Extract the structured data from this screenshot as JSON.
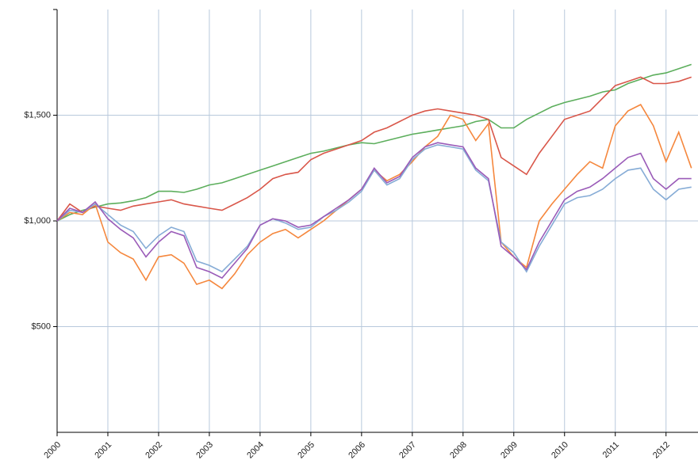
{
  "chart_data": {
    "type": "line",
    "x": [
      2000,
      2000.25,
      2000.5,
      2000.75,
      2001,
      2001.25,
      2001.5,
      2001.75,
      2002,
      2002.25,
      2002.5,
      2002.75,
      2003,
      2003.25,
      2003.5,
      2003.75,
      2004,
      2004.25,
      2004.5,
      2004.75,
      2005,
      2005.25,
      2005.5,
      2005.75,
      2006,
      2006.25,
      2006.5,
      2006.75,
      2007,
      2007.25,
      2007.5,
      2007.75,
      2008,
      2008.25,
      2008.5,
      2008.75,
      2009,
      2009.25,
      2009.5,
      2009.75,
      2010,
      2010.25,
      2010.5,
      2010.75,
      2011,
      2011.25,
      2011.5,
      2011.75,
      2012,
      2012.25,
      2012.5
    ],
    "series": [
      {
        "color": "#5cae5c",
        "values": [
          1000,
          1030,
          1050,
          1065,
          1080,
          1085,
          1095,
          1110,
          1140,
          1140,
          1135,
          1150,
          1170,
          1180,
          1200,
          1220,
          1240,
          1260,
          1280,
          1300,
          1320,
          1330,
          1345,
          1360,
          1370,
          1365,
          1380,
          1395,
          1410,
          1420,
          1430,
          1440,
          1450,
          1470,
          1480,
          1440,
          1440,
          1480,
          1510,
          1540,
          1560,
          1575,
          1590,
          1610,
          1620,
          1650,
          1670,
          1690,
          1700,
          1720,
          1740
        ]
      },
      {
        "color": "#d9574a",
        "values": [
          1000,
          1080,
          1040,
          1070,
          1060,
          1050,
          1070,
          1080,
          1090,
          1100,
          1080,
          1070,
          1060,
          1050,
          1080,
          1110,
          1150,
          1200,
          1220,
          1230,
          1290,
          1320,
          1340,
          1360,
          1380,
          1420,
          1440,
          1470,
          1500,
          1520,
          1530,
          1520,
          1510,
          1500,
          1480,
          1300,
          1260,
          1220,
          1320,
          1400,
          1480,
          1500,
          1520,
          1580,
          1640,
          1660,
          1680,
          1650,
          1650,
          1660,
          1680
        ]
      },
      {
        "color": "#f5873d",
        "values": [
          1000,
          1040,
          1030,
          1080,
          900,
          850,
          820,
          720,
          830,
          840,
          800,
          700,
          720,
          680,
          750,
          840,
          900,
          940,
          960,
          920,
          960,
          1000,
          1050,
          1100,
          1150,
          1240,
          1190,
          1220,
          1280,
          1350,
          1400,
          1500,
          1480,
          1380,
          1460,
          900,
          830,
          780,
          1000,
          1080,
          1150,
          1220,
          1280,
          1250,
          1450,
          1520,
          1550,
          1450,
          1280,
          1420,
          1250
        ]
      },
      {
        "color": "#86acd6",
        "values": [
          1000,
          1050,
          1040,
          1080,
          1030,
          980,
          950,
          870,
          930,
          970,
          950,
          810,
          790,
          760,
          820,
          880,
          980,
          1010,
          990,
          960,
          970,
          1020,
          1050,
          1090,
          1140,
          1240,
          1170,
          1200,
          1290,
          1340,
          1360,
          1350,
          1340,
          1240,
          1190,
          900,
          850,
          760,
          880,
          980,
          1080,
          1110,
          1120,
          1150,
          1200,
          1240,
          1250,
          1150,
          1100,
          1150,
          1160
        ]
      },
      {
        "color": "#9a5bb8",
        "values": [
          1000,
          1060,
          1040,
          1090,
          1010,
          960,
          920,
          830,
          900,
          950,
          930,
          780,
          760,
          730,
          800,
          870,
          980,
          1010,
          1000,
          970,
          980,
          1020,
          1060,
          1100,
          1150,
          1250,
          1180,
          1210,
          1300,
          1350,
          1370,
          1360,
          1350,
          1250,
          1200,
          880,
          830,
          770,
          900,
          1000,
          1100,
          1140,
          1160,
          1200,
          1250,
          1300,
          1320,
          1200,
          1150,
          1200,
          1200
        ]
      }
    ],
    "xlim": [
      2000,
      2012.63
    ],
    "xticks": [
      2000,
      2001,
      2002,
      2003,
      2004,
      2005,
      2006,
      2007,
      2008,
      2009,
      2010,
      2011,
      2012
    ],
    "ylim": [
      0,
      2000
    ],
    "yticks": [
      {
        "value": 500,
        "label": "$500"
      },
      {
        "value": 1000,
        "label": "$1,000"
      },
      {
        "value": 1500,
        "label": "$1,500"
      }
    ],
    "grid": true
  }
}
